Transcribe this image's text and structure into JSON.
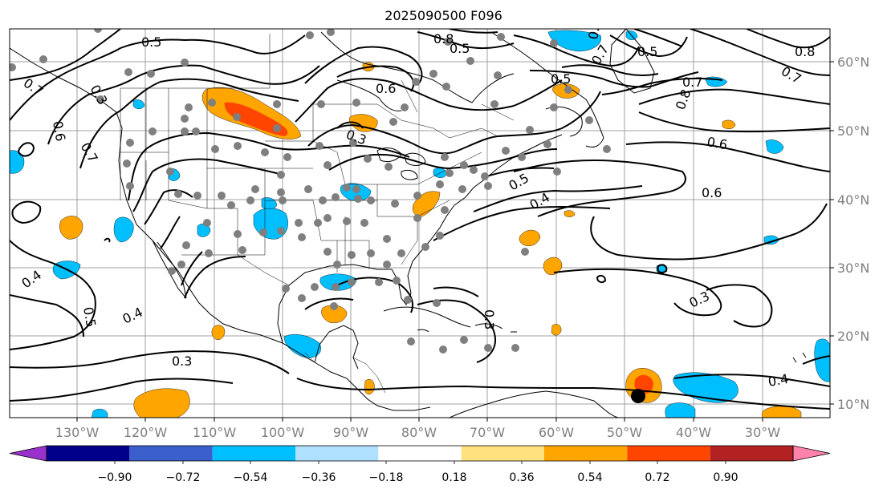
{
  "title": "2025090500 F096",
  "lat_labels": [
    "60°N",
    "50°N",
    "40°N",
    "30°N",
    "20°N",
    "10°N"
  ],
  "lon_labels": [
    "130°W",
    "120°W",
    "110°W",
    "100°W",
    "90°W",
    "80°W",
    "70°W",
    "60°W",
    "50°W",
    "40°W",
    "30°W"
  ],
  "contour_labels": [
    "0.5",
    "0.7",
    "0.8",
    "0.5",
    "0.7",
    "0.6",
    "0.5",
    "0.7",
    "0.8",
    "0.8",
    "0.7",
    "0.6",
    "0.6",
    "0.3",
    "0.6",
    "0.5",
    "0.7",
    "0.4",
    "0.3",
    "0.4",
    "0.5",
    "0.4",
    "0.3",
    "0.3",
    "0.4",
    "0.3",
    "0.3"
  ],
  "colorbar": {
    "ticks": [
      "−0.90",
      "−0.72",
      "−0.54",
      "−0.36",
      "−0.18",
      "0.18",
      "0.36",
      "0.54",
      "0.72",
      "0.90"
    ],
    "colors": [
      "#9932cc",
      "#00008b",
      "#3a5fcd",
      "#00bfff",
      "#b0e0ff",
      "#ffffff",
      "#ffe27f",
      "#ffa500",
      "#ff4500",
      "#b22222",
      "#ff82ab"
    ]
  },
  "colors": {
    "station": "#7f7f7f",
    "marker": "#000000",
    "neg_light": "#00bfff",
    "pos_orange": "#ffa500",
    "pos_red": "#ff4500"
  }
}
